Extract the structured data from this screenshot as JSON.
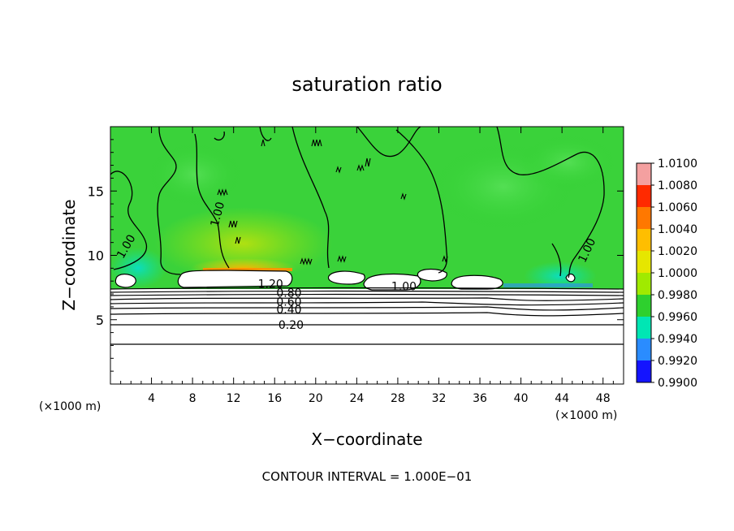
{
  "chart_data": {
    "type": "heatmap",
    "title": "saturation ratio",
    "xlabel": "X−coordinate",
    "ylabel": "Z−coordinate",
    "x_unit_left": "(×1000 m)",
    "x_unit_right": "(×1000 m)",
    "xlim": [
      0,
      50
    ],
    "ylim": [
      0,
      20
    ],
    "x_ticks": [
      4,
      8,
      12,
      16,
      20,
      24,
      28,
      32,
      36,
      40,
      44,
      48
    ],
    "y_ticks": [
      5,
      10,
      15
    ],
    "footer": "CONTOUR INTERVAL = 1.000E−01",
    "colorbar": {
      "labels": [
        "1.0100",
        "1.0080",
        "1.0060",
        "1.0040",
        "1.0020",
        "1.0000",
        "0.9980",
        "0.9960",
        "0.9940",
        "0.9920",
        "0.9900"
      ],
      "colors": [
        "#f4a0a0",
        "#ff2a00",
        "#ff7800",
        "#ffbe00",
        "#e6e600",
        "#a0ea00",
        "#2ed02e",
        "#00e6b4",
        "#2a8cff",
        "#1414ff",
        "#7a00b4"
      ]
    },
    "contour_labels": [
      {
        "text": "1.00",
        "x": 1.5,
        "y": 10.7
      },
      {
        "text": "1.00",
        "x": 10.4,
        "y": 13.2
      },
      {
        "text": "1.00",
        "x": 46.4,
        "y": 10.4
      },
      {
        "text": "1.20",
        "x": 15.6,
        "y": 7.8
      },
      {
        "text": "1.00",
        "x": 28.6,
        "y": 7.6
      },
      {
        "text": "0.80",
        "x": 17.4,
        "y": 7.1
      },
      {
        "text": "0.60",
        "x": 17.4,
        "y": 6.4
      },
      {
        "text": "0.40",
        "x": 17.4,
        "y": 5.8
      },
      {
        "text": "0.20",
        "x": 17.6,
        "y": 4.6
      }
    ],
    "contour_levels_below_cloud": [
      0.2,
      0.4,
      0.6,
      0.8
    ]
  }
}
